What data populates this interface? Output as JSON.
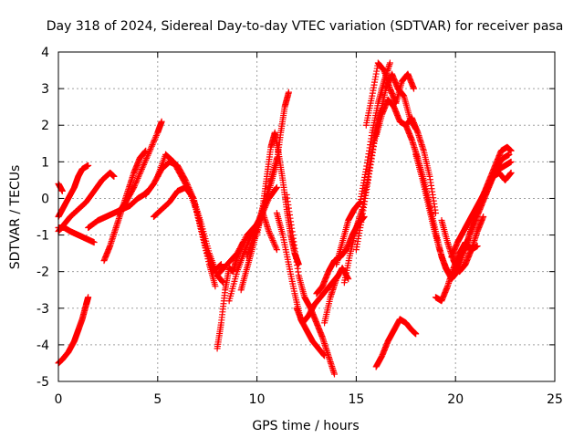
{
  "chart_data": {
    "type": "scatter",
    "title": "Day 318 of 2024, Sidereal Day-to-day VTEC variation (SDTVAR) for receiver pasa",
    "xlabel": "GPS time / hours",
    "ylabel": "SDTVAR / TECUs",
    "xlim": [
      0,
      25
    ],
    "ylim": [
      -5,
      4
    ],
    "xticks": [
      "0",
      "5",
      "10",
      "15",
      "20",
      "25"
    ],
    "yticks": [
      "-5",
      "-4",
      "-3",
      "-2",
      "-1",
      "0",
      "1",
      "2",
      "3",
      "4"
    ],
    "grid": true,
    "marker": "plus",
    "color": "#ff0000",
    "series": [
      {
        "x": [
          0.0,
          0.2,
          0.5,
          0.8,
          1.0,
          1.2,
          1.4,
          1.5
        ],
        "y": [
          -4.5,
          -4.4,
          -4.2,
          -3.9,
          -3.6,
          -3.3,
          -2.9,
          -2.7
        ]
      },
      {
        "x": [
          0.0,
          0.2,
          0.5,
          0.8,
          1.0,
          1.2,
          1.5
        ],
        "y": [
          -0.5,
          -0.3,
          0.0,
          0.3,
          0.6,
          0.8,
          0.9
        ]
      },
      {
        "x": [
          0.0,
          0.3,
          0.6,
          1.0,
          1.4,
          1.8,
          2.2,
          2.6,
          2.8
        ],
        "y": [
          -0.9,
          -0.7,
          -0.5,
          -0.3,
          -0.1,
          0.2,
          0.5,
          0.7,
          0.6
        ]
      },
      {
        "x": [
          0.0,
          0.2
        ],
        "y": [
          0.4,
          0.2
        ]
      },
      {
        "x": [
          0.0,
          0.3,
          0.6,
          1.0,
          1.4,
          1.8
        ],
        "y": [
          -0.8,
          -0.8,
          -0.9,
          -1.0,
          -1.1,
          -1.2
        ]
      },
      {
        "x": [
          1.5,
          2.0,
          2.4,
          2.8,
          3.2,
          3.6,
          4.0,
          4.3,
          4.5
        ],
        "y": [
          -0.8,
          -0.6,
          -0.5,
          -0.4,
          -0.3,
          -0.2,
          0.0,
          0.1,
          0.2
        ]
      },
      {
        "x": [
          2.3,
          2.6,
          2.9,
          3.2,
          3.5,
          3.8,
          4.1,
          4.4
        ],
        "y": [
          -1.7,
          -1.3,
          -0.8,
          -0.3,
          0.2,
          0.7,
          1.1,
          1.3
        ]
      },
      {
        "x": [
          3.0,
          3.4,
          3.8,
          4.2,
          4.6,
          5.0,
          5.2
        ],
        "y": [
          -0.4,
          -0.1,
          0.3,
          0.8,
          1.3,
          1.8,
          2.1
        ]
      },
      {
        "x": [
          4.4,
          4.8,
          5.2,
          5.6,
          6.0,
          6.4,
          6.8,
          7.2,
          7.6,
          7.9
        ],
        "y": [
          0.1,
          0.4,
          0.8,
          1.0,
          0.9,
          0.5,
          0.0,
          -0.9,
          -1.8,
          -2.4
        ]
      },
      {
        "x": [
          4.8,
          5.2,
          5.6,
          6.0,
          6.4,
          6.8,
          7.2,
          7.6,
          8.0,
          8.3
        ],
        "y": [
          -0.5,
          -0.3,
          -0.1,
          0.2,
          0.3,
          0.0,
          -0.7,
          -1.5,
          -2.1,
          -2.3
        ]
      },
      {
        "x": [
          5.0,
          5.4,
          5.8,
          6.2,
          6.6,
          7.0,
          7.4,
          7.8,
          8.2
        ],
        "y": [
          0.6,
          1.2,
          1.0,
          0.6,
          0.2,
          -0.4,
          -1.3,
          -2.0,
          -1.8
        ]
      },
      {
        "x": [
          8.0,
          8.2,
          8.4,
          8.6,
          8.8,
          9.0,
          9.3
        ],
        "y": [
          -4.1,
          -3.4,
          -2.5,
          -1.9,
          -2.0,
          -1.6,
          -1.2
        ]
      },
      {
        "x": [
          8.0,
          8.5,
          9.0,
          9.5,
          10.0,
          10.3,
          10.6,
          11.0
        ],
        "y": [
          -2.1,
          -1.8,
          -1.5,
          -1.0,
          -0.7,
          -0.4,
          -0.9,
          -1.4
        ]
      },
      {
        "x": [
          8.6,
          9.0,
          9.4,
          9.8,
          10.2,
          10.6,
          11.0
        ],
        "y": [
          -2.8,
          -2.0,
          -1.4,
          -0.9,
          -0.5,
          0.0,
          0.3
        ]
      },
      {
        "x": [
          9.2,
          9.5,
          9.8,
          10.1,
          10.4,
          10.7,
          11.0,
          11.2,
          11.4,
          11.6
        ],
        "y": [
          -2.5,
          -1.9,
          -1.3,
          -0.7,
          -0.2,
          0.4,
          1.0,
          1.8,
          2.5,
          2.9
        ]
      },
      {
        "x": [
          9.5,
          9.8,
          10.1,
          10.4,
          10.7,
          11.0
        ],
        "y": [
          -1.6,
          -1.1,
          -0.6,
          -0.1,
          0.5,
          1.1
        ]
      },
      {
        "x": [
          10.0,
          10.3,
          10.5,
          10.7,
          10.9,
          11.1,
          11.3,
          11.5,
          11.7,
          11.9,
          12.1
        ],
        "y": [
          -1.0,
          -0.2,
          0.6,
          1.4,
          1.8,
          1.2,
          0.5,
          -0.3,
          -1.0,
          -1.5,
          -1.8
        ]
      },
      {
        "x": [
          11.0,
          11.3,
          11.6,
          11.9,
          12.2,
          12.5,
          12.8,
          13.1,
          13.4
        ],
        "y": [
          -0.4,
          -1.0,
          -1.8,
          -2.6,
          -3.3,
          -3.6,
          -3.9,
          -4.1,
          -4.3
        ]
      },
      {
        "x": [
          11.5,
          11.8,
          12.1,
          12.4,
          12.7,
          13.0,
          13.3,
          13.6,
          13.9
        ],
        "y": [
          0.1,
          -1.0,
          -2.1,
          -2.7,
          -3.0,
          -3.4,
          -3.8,
          -4.3,
          -4.8
        ]
      },
      {
        "x": [
          12.0,
          12.3,
          12.6,
          12.9,
          13.2,
          13.5,
          13.8,
          14.1
        ],
        "y": [
          -3.0,
          -3.4,
          -3.2,
          -2.9,
          -2.7,
          -2.5,
          -2.3,
          -2.1
        ]
      },
      {
        "x": [
          13.0,
          13.3,
          13.6,
          13.9,
          14.2,
          14.5,
          14.8,
          15.1,
          15.4
        ],
        "y": [
          -2.6,
          -2.4,
          -2.0,
          -1.7,
          -1.6,
          -1.4,
          -1.0,
          -0.7,
          -0.5
        ]
      },
      {
        "x": [
          13.4,
          13.7,
          14.0,
          14.3,
          14.6
        ],
        "y": [
          -3.4,
          -2.7,
          -2.2,
          -1.9,
          -2.2
        ]
      },
      {
        "x": [
          14.0,
          14.3,
          14.6,
          14.9,
          15.2,
          15.5,
          15.8,
          16.1,
          16.4,
          16.7
        ],
        "y": [
          -1.8,
          -1.2,
          -0.6,
          -0.3,
          -0.1,
          0.8,
          1.8,
          2.6,
          3.2,
          3.7
        ]
      },
      {
        "x": [
          14.4,
          14.7,
          15.0,
          15.3,
          15.6,
          15.9,
          16.2
        ],
        "y": [
          -2.3,
          -1.5,
          -0.8,
          -0.3,
          0.6,
          1.6,
          2.4
        ]
      },
      {
        "x": [
          15.0,
          15.3,
          15.6,
          15.9,
          16.2,
          16.5,
          16.8,
          17.1,
          17.4,
          17.7,
          18.0
        ],
        "y": [
          -1.4,
          -0.5,
          0.5,
          1.5,
          2.3,
          3.0,
          3.4,
          3.0,
          2.8,
          2.2,
          1.9
        ]
      },
      {
        "x": [
          15.5,
          15.8,
          16.1,
          16.4,
          16.7,
          17.0,
          17.3,
          17.6,
          17.9
        ],
        "y": [
          2.0,
          2.8,
          3.7,
          3.5,
          3.0,
          2.6,
          3.2,
          3.4,
          3.0
        ]
      },
      {
        "x": [
          16.0,
          16.3,
          16.6,
          16.9,
          17.2,
          17.5,
          17.8,
          18.1,
          18.4,
          18.7,
          19.0
        ],
        "y": [
          1.7,
          2.3,
          2.7,
          2.5,
          2.1,
          2.0,
          2.2,
          1.8,
          1.3,
          0.6,
          -0.4
        ]
      },
      {
        "x": [
          17.5,
          17.8,
          18.1,
          18.4,
          18.7,
          19.0,
          19.3,
          19.6,
          19.9,
          20.2,
          20.5
        ],
        "y": [
          2.0,
          1.6,
          1.1,
          0.5,
          -0.2,
          -0.9,
          -1.6,
          -2.0,
          -2.1,
          -1.7,
          -1.2
        ]
      },
      {
        "x": [
          18.0,
          18.3,
          18.6,
          18.9,
          19.2,
          19.5,
          19.8,
          20.1,
          20.4,
          20.7,
          21.0
        ],
        "y": [
          1.2,
          0.6,
          -0.1,
          -0.8,
          -1.4,
          -1.9,
          -2.2,
          -2.0,
          -1.5,
          -1.0,
          -0.6
        ]
      },
      {
        "x": [
          16.0,
          16.3,
          16.6,
          16.9,
          17.2,
          17.5,
          17.8,
          18.0
        ],
        "y": [
          -4.6,
          -4.3,
          -3.9,
          -3.6,
          -3.3,
          -3.4,
          -3.6,
          -3.7
        ]
      },
      {
        "x": [
          19.0,
          19.3,
          19.6,
          19.9,
          20.2,
          20.5,
          20.8,
          21.1
        ],
        "y": [
          -2.7,
          -2.8,
          -2.4,
          -1.9,
          -1.5,
          -1.2,
          -1.4,
          -1.3
        ]
      },
      {
        "x": [
          19.3,
          19.6,
          19.9,
          20.2,
          20.5,
          20.8,
          21.1,
          21.4
        ],
        "y": [
          -0.6,
          -1.2,
          -1.7,
          -2.0,
          -1.8,
          -1.4,
          -0.9,
          -0.5
        ]
      },
      {
        "x": [
          19.8,
          20.1,
          20.4,
          20.7,
          21.0,
          21.3,
          21.6,
          21.9,
          22.2,
          22.5,
          22.8
        ],
        "y": [
          -1.6,
          -1.2,
          -0.9,
          -0.6,
          -0.3,
          0.0,
          0.3,
          0.6,
          0.8,
          0.9,
          1.0
        ]
      },
      {
        "x": [
          20.5,
          20.8,
          21.1,
          21.4,
          21.7,
          22.0,
          22.3,
          22.6,
          22.8
        ],
        "y": [
          -1.4,
          -0.8,
          -0.3,
          0.1,
          0.5,
          0.9,
          1.3,
          1.4,
          1.3
        ]
      },
      {
        "x": [
          21.0,
          21.3,
          21.6,
          21.9,
          22.2,
          22.5,
          22.8
        ],
        "y": [
          -0.6,
          -0.2,
          0.2,
          0.6,
          0.7,
          0.5,
          0.7
        ]
      },
      {
        "x": [
          21.5,
          21.8,
          22.1,
          22.4,
          22.7
        ],
        "y": [
          0.1,
          0.5,
          0.9,
          1.1,
          1.2
        ]
      }
    ]
  }
}
